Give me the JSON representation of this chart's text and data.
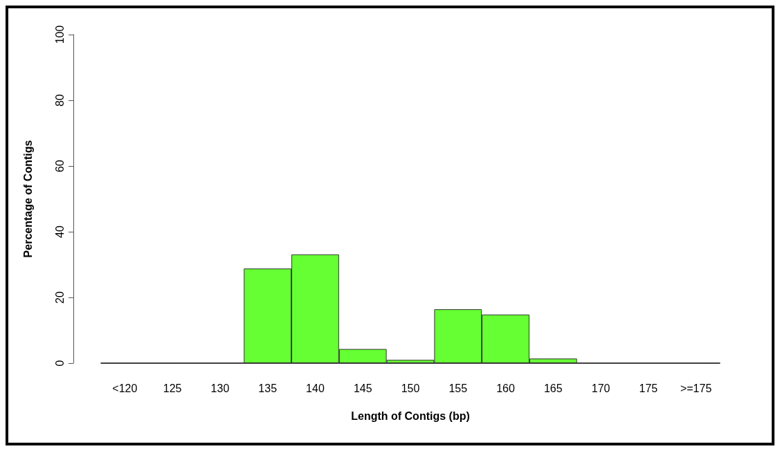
{
  "chart_data": {
    "type": "bar",
    "xlabel": "Length of Contigs (bp)",
    "ylabel": "Percentage of Contigs",
    "categories": [
      "<120",
      "125",
      "130",
      "135",
      "140",
      "145",
      "150",
      "155",
      "160",
      "165",
      "170",
      "175",
      ">=175"
    ],
    "values": [
      0,
      0,
      0,
      28.8,
      33.1,
      4.3,
      1.0,
      16.4,
      14.8,
      1.4,
      0,
      0,
      0
    ],
    "color": "#66ff33",
    "ylim": [
      0,
      100
    ],
    "yticks": [
      0,
      20,
      40,
      60,
      80,
      100
    ],
    "grid": false
  }
}
